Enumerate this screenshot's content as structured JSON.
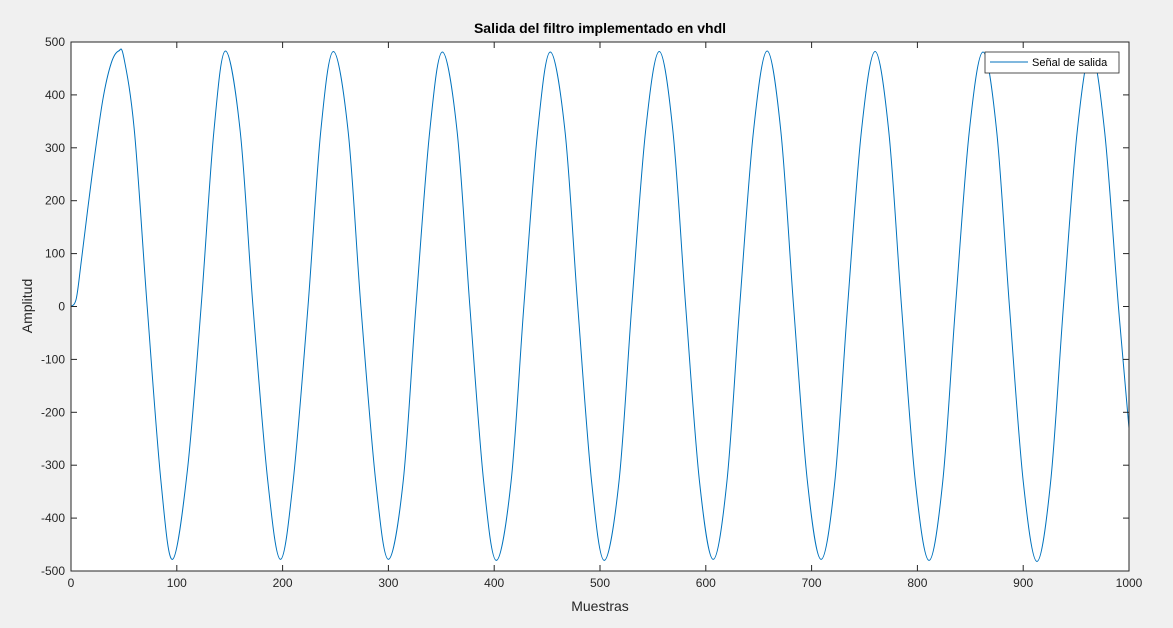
{
  "figure": {
    "background": "#f0f0f0"
  },
  "chart_data": {
    "type": "line",
    "title": "Salida del filtro implementado en vhdl",
    "xlabel": "Muestras",
    "ylabel": "Amplitud",
    "xlim": [
      0,
      1000
    ],
    "ylim": [
      -500,
      500
    ],
    "xticks": [
      0,
      100,
      200,
      300,
      400,
      500,
      600,
      700,
      800,
      900,
      1000
    ],
    "yticks": [
      500,
      400,
      300,
      200,
      100,
      0,
      -100,
      -200,
      -300,
      -400,
      -500
    ],
    "grid": false,
    "legend": {
      "location": "top-right",
      "entries": [
        "Señal de salida"
      ]
    },
    "colors": {
      "line": "#0072bd",
      "axes": "#262626",
      "plot_bg": "#ffffff"
    },
    "series": [
      {
        "name": "Señal de salida",
        "x": [
          0,
          5,
          10,
          20,
          30,
          38,
          45,
          50,
          60,
          72,
          85,
          96,
          110,
          123,
          135,
          146,
          160,
          172,
          186,
          198,
          210,
          224,
          236,
          248,
          262,
          274,
          288,
          300,
          314,
          326,
          339,
          351,
          365,
          377,
          390,
          402,
          416,
          428,
          441,
          453,
          467,
          479,
          492,
          504,
          518,
          530,
          543,
          556,
          569,
          581,
          594,
          607,
          620,
          632,
          645,
          658,
          671,
          683,
          696,
          709,
          722,
          734,
          747,
          760,
          773,
          785,
          798,
          811,
          824,
          836,
          849,
          862,
          875,
          887,
          900,
          913,
          926,
          938,
          951,
          964,
          977,
          990,
          1000
        ],
        "y": [
          0,
          15,
          90,
          250,
          390,
          460,
          483,
          470,
          330,
          0,
          -330,
          -478,
          -310,
          0,
          330,
          483,
          330,
          0,
          -330,
          -478,
          -330,
          0,
          330,
          482,
          330,
          0,
          -330,
          -478,
          -330,
          0,
          330,
          481,
          330,
          0,
          -330,
          -480,
          -330,
          0,
          330,
          481,
          330,
          0,
          -330,
          -480,
          -330,
          0,
          330,
          482,
          330,
          0,
          -330,
          -478,
          -330,
          0,
          330,
          483,
          330,
          0,
          -330,
          -478,
          -330,
          0,
          330,
          482,
          330,
          0,
          -330,
          -480,
          -330,
          0,
          330,
          481,
          330,
          0,
          -330,
          -482,
          -330,
          0,
          330,
          481,
          330,
          0,
          -230
        ]
      }
    ]
  }
}
